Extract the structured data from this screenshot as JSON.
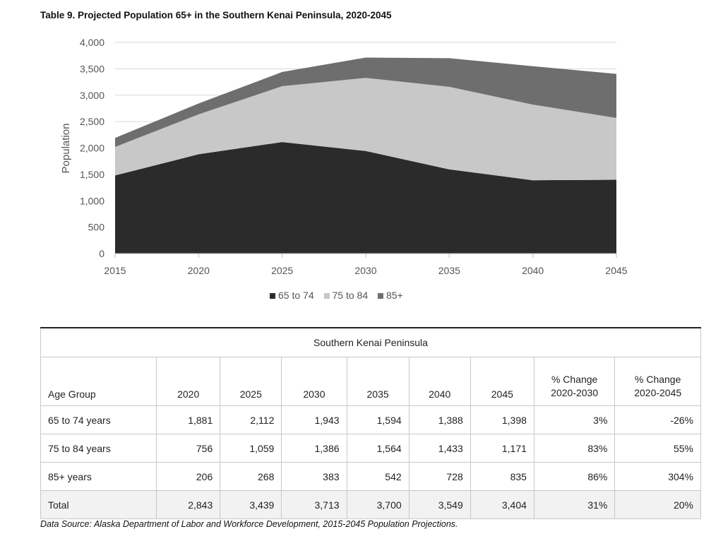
{
  "title": "Table 9. Projected Population 65+ in the Southern Kenai Peninsula, 2020-2045",
  "chart_data": {
    "type": "area",
    "stacked": true,
    "x": [
      2015,
      2020,
      2025,
      2030,
      2035,
      2040,
      2045
    ],
    "x_tick_labels": [
      "2015",
      "2020",
      "2025",
      "2030",
      "2035",
      "2040",
      "2045"
    ],
    "y_tick_labels": [
      "0",
      "500",
      "1,000",
      "1,500",
      "2,000",
      "2,500",
      "3,000",
      "3,500",
      "4,000"
    ],
    "ylim": [
      0,
      4000
    ],
    "ylabel": "Population",
    "xlabel": "",
    "grid": true,
    "legend_position": "bottom",
    "series": [
      {
        "name": "65 to 74",
        "color": "#2b2b2b",
        "values": [
          1480,
          1881,
          2112,
          1943,
          1594,
          1388,
          1398
        ]
      },
      {
        "name": "75 to 84",
        "color": "#c8c8c8",
        "values": [
          540,
          756,
          1059,
          1386,
          1564,
          1433,
          1171
        ]
      },
      {
        "name": "85+",
        "color": "#6e6e6e",
        "values": [
          170,
          206,
          268,
          383,
          542,
          728,
          835
        ]
      }
    ]
  },
  "table": {
    "region": "Southern Kenai Peninsula",
    "headers": {
      "age_group": "Age Group",
      "years": [
        "2020",
        "2025",
        "2030",
        "2035",
        "2040",
        "2045"
      ],
      "pct1_line1": "% Change",
      "pct1_line2": "2020-2030",
      "pct2_line1": "% Change",
      "pct2_line2": "2020-2045"
    },
    "rows": [
      {
        "label": "65 to 74 years",
        "values": [
          "1,881",
          "2,112",
          "1,943",
          "1,594",
          "1,388",
          "1,398"
        ],
        "pct1": "3%",
        "pct2": "-26%"
      },
      {
        "label": "75 to 84 years",
        "values": [
          "756",
          "1,059",
          "1,386",
          "1,564",
          "1,433",
          "1,171"
        ],
        "pct1": "83%",
        "pct2": "55%"
      },
      {
        "label": "85+ years",
        "values": [
          "206",
          "268",
          "383",
          "542",
          "728",
          "835"
        ],
        "pct1": "86%",
        "pct2": "304%"
      },
      {
        "label": "Total",
        "values": [
          "2,843",
          "3,439",
          "3,713",
          "3,700",
          "3,549",
          "3,404"
        ],
        "pct1": "31%",
        "pct2": "20%"
      }
    ]
  },
  "source": "Data Source: Alaska Department of Labor and Workforce Development, 2015-2045 Population Projections."
}
